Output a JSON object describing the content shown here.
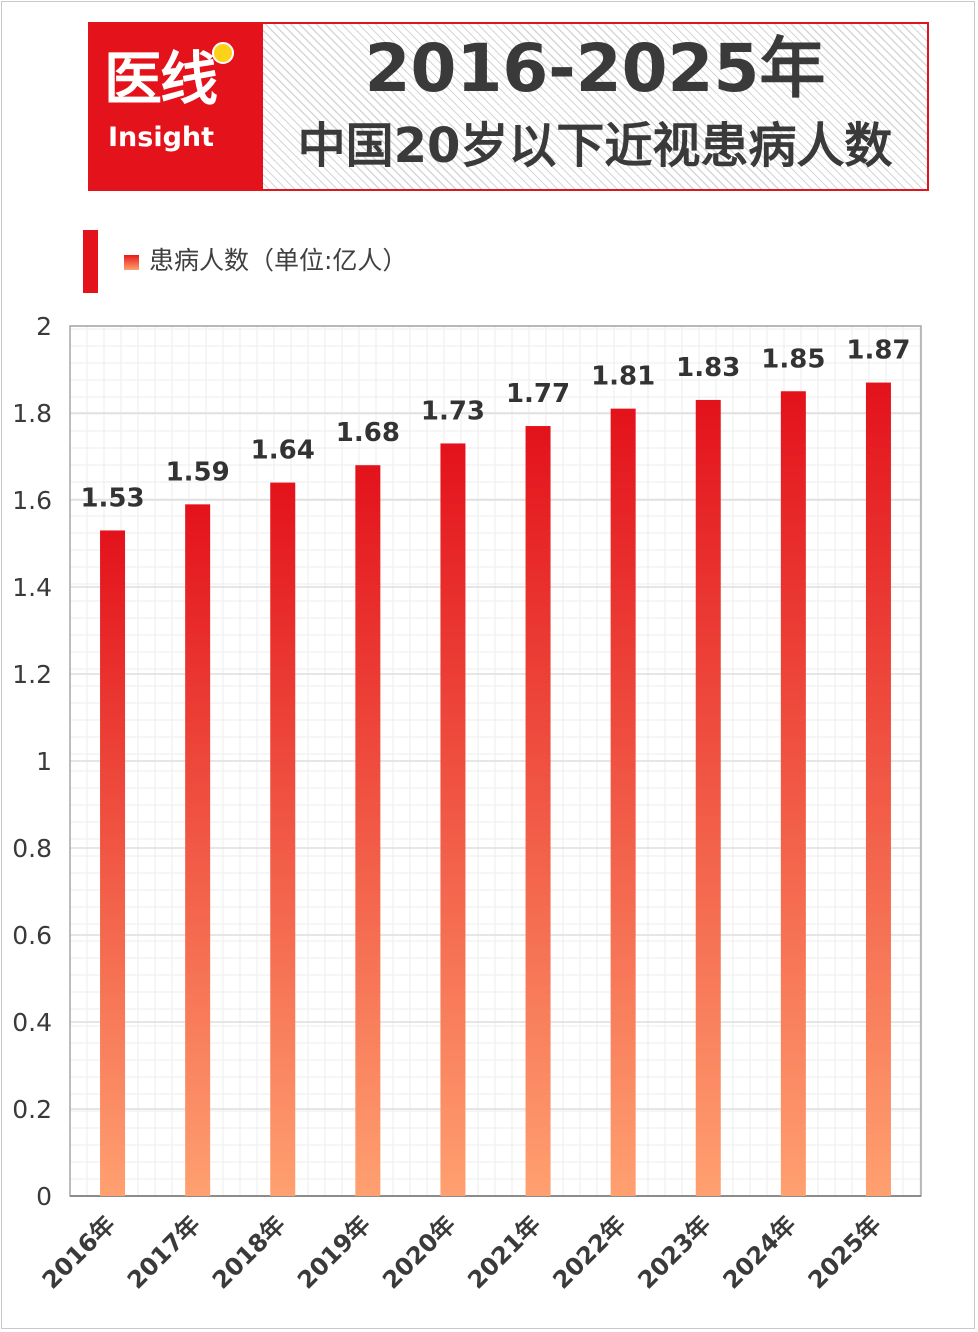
{
  "header": {
    "logo_cn": "医线",
    "logo_en": "Insight",
    "title_line1": "2016-2025年",
    "title_line2": "中国20岁以下近视患病人数"
  },
  "legend": {
    "label": "患病人数（单位:亿人）"
  },
  "colors": {
    "brand_red": "#e3121b",
    "bar_top": "#e3121b",
    "bar_bottom": "#ffa070"
  },
  "chart_data": {
    "type": "bar",
    "title": "2016-2025年 中国20岁以下近视患病人数",
    "categories": [
      "2016年",
      "2017年",
      "2018年",
      "2019年",
      "2020年",
      "2021年",
      "2022年",
      "2023年",
      "2024年",
      "2025年"
    ],
    "series": [
      {
        "name": "患病人数（单位:亿人）",
        "values": [
          1.53,
          1.59,
          1.64,
          1.68,
          1.73,
          1.77,
          1.81,
          1.83,
          1.85,
          1.87
        ]
      }
    ],
    "data_labels": [
      "1.53",
      "1.59",
      "1.64",
      "1.68",
      "1.73",
      "1.77",
      "1.81",
      "1.83",
      "1.85",
      "1.87"
    ],
    "ylim": [
      0,
      2
    ],
    "yticks": [
      "0",
      "0.2",
      "0.4",
      "0.6",
      "0.8",
      "1",
      "1.2",
      "1.4",
      "1.6",
      "1.8",
      "2"
    ],
    "xlabel": "",
    "ylabel": "",
    "grid": true,
    "legend_position": "top-left"
  }
}
